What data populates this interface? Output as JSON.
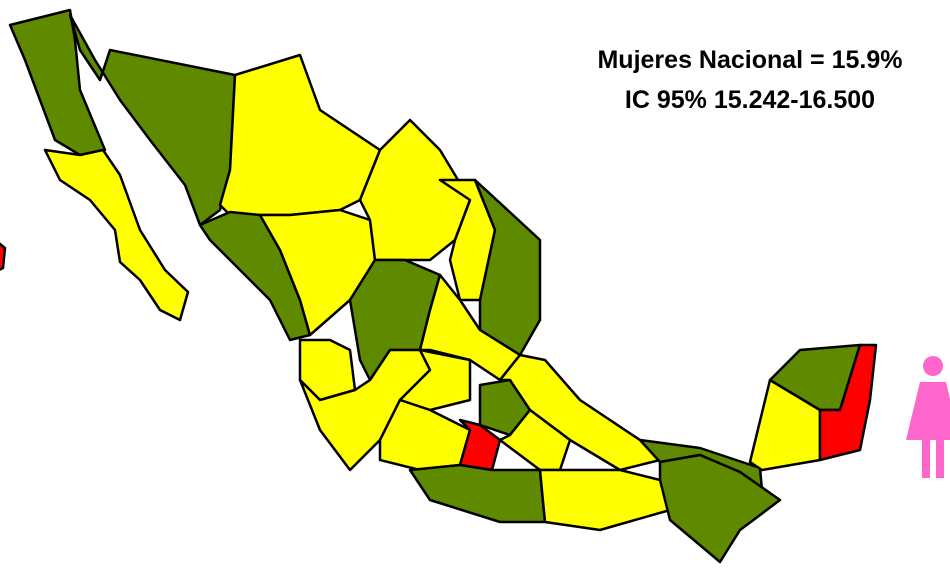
{
  "annotation": {
    "line1": "Mujeres Nacional = 15.9%",
    "line2": "IC 95% 15.242-16.500"
  }
}
